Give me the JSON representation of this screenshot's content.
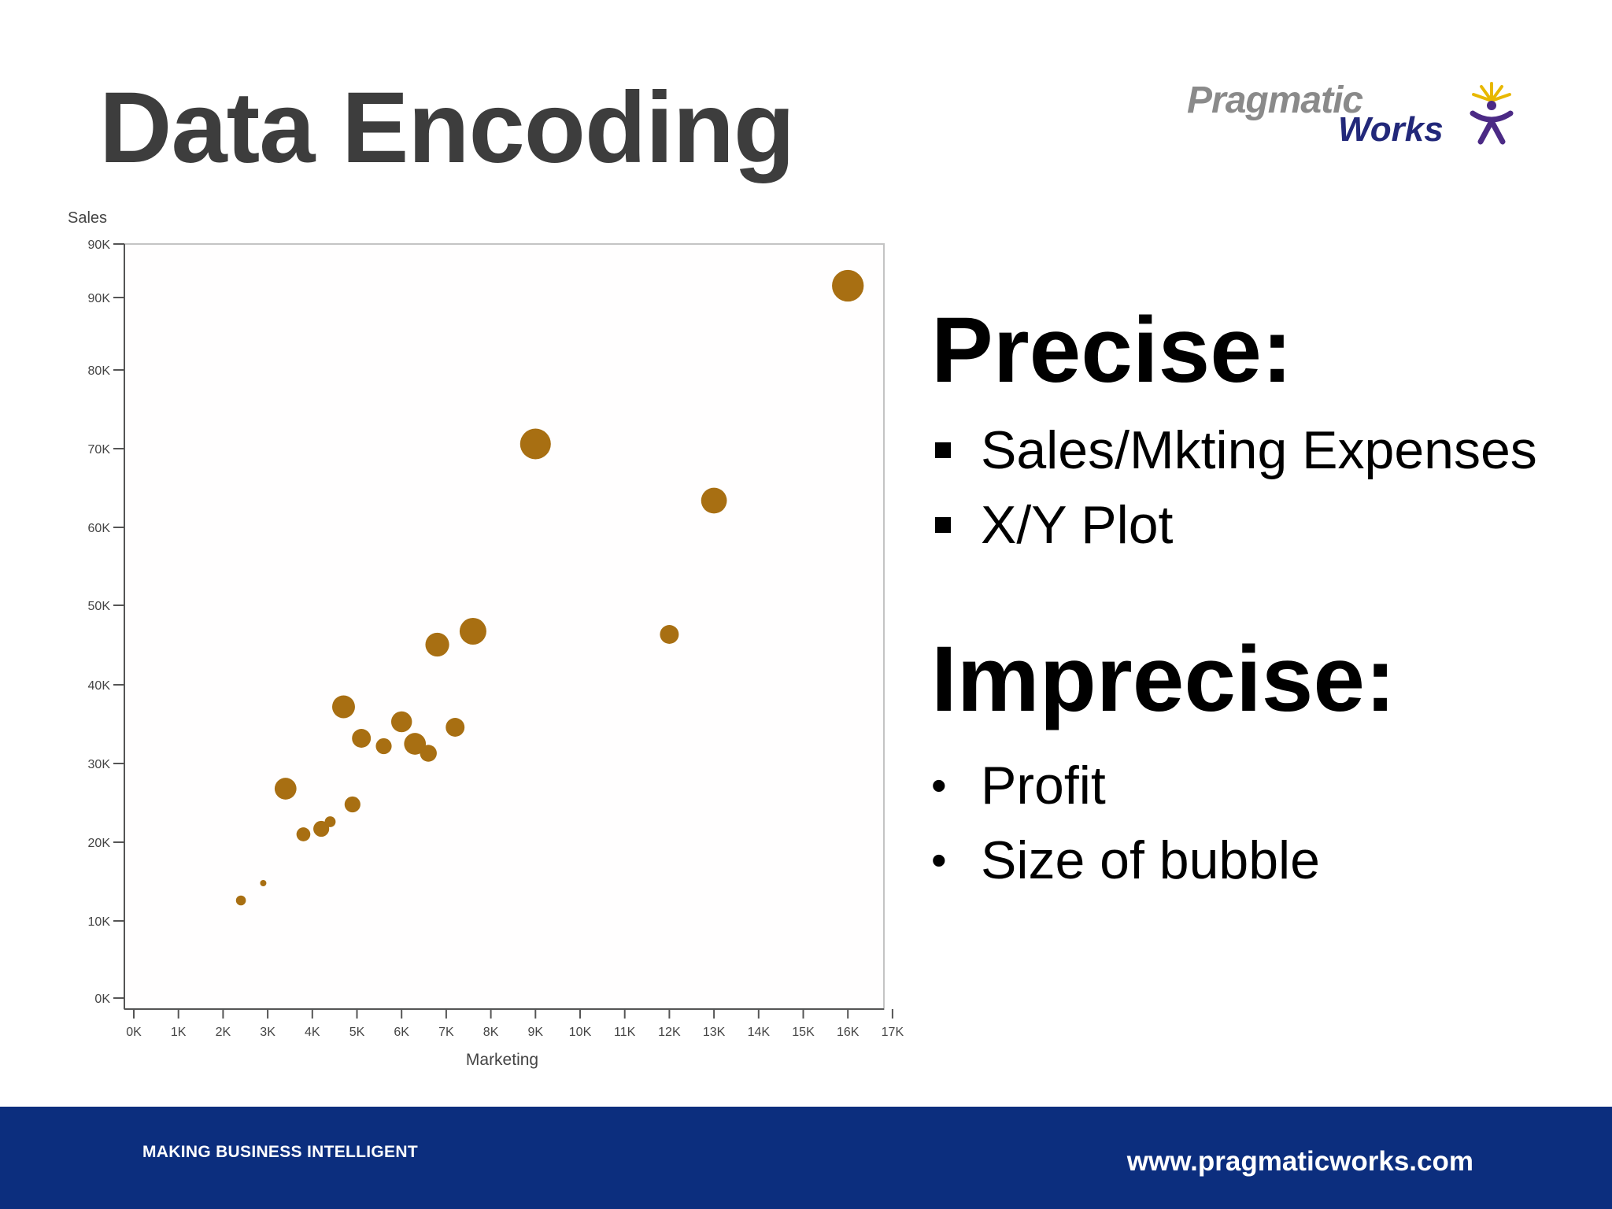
{
  "slide": {
    "title": "Data Encoding"
  },
  "logo": {
    "word1": "Pragmatic",
    "word2": "Works",
    "colors": {
      "gray": "#8a8a8a",
      "navy": "#22287a",
      "gold": "#e8b800",
      "purple": "#4b2a85"
    }
  },
  "chart_data": {
    "type": "scatter",
    "xlabel": "Marketing",
    "ylabel": "Sales",
    "xlim": [
      0,
      17000
    ],
    "ylim": [
      0,
      90000
    ],
    "xticks": [
      "0K",
      "1K",
      "2K",
      "3K",
      "4K",
      "5K",
      "6K",
      "7K",
      "8K",
      "9K",
      "10K",
      "11K",
      "12K",
      "13K",
      "14K",
      "15K",
      "16K",
      "17K"
    ],
    "yticks": [
      "0K",
      "10K",
      "20K",
      "30K",
      "40K",
      "50K",
      "60K",
      "70K",
      "80K",
      "90K"
    ],
    "yticks_shown": [
      "0K",
      "10K",
      "20K",
      "30K",
      "40K",
      "50K",
      "60K",
      "70K",
      "80K",
      "90K",
      "90K"
    ],
    "bubble_color": "#a86f12",
    "size_encoding": "Profit",
    "points": [
      {
        "x": 2400,
        "y": 12600,
        "size": 1.0
      },
      {
        "x": 2900,
        "y": 14800,
        "size": 0.5
      },
      {
        "x": 3400,
        "y": 26800,
        "size": 2.2
      },
      {
        "x": 3800,
        "y": 21000,
        "size": 1.4
      },
      {
        "x": 4200,
        "y": 21700,
        "size": 1.6
      },
      {
        "x": 4400,
        "y": 22600,
        "size": 1.1
      },
      {
        "x": 4700,
        "y": 37200,
        "size": 2.3
      },
      {
        "x": 4900,
        "y": 24800,
        "size": 1.6
      },
      {
        "x": 5100,
        "y": 33200,
        "size": 1.9
      },
      {
        "x": 5600,
        "y": 32200,
        "size": 1.6
      },
      {
        "x": 6000,
        "y": 35300,
        "size": 2.1
      },
      {
        "x": 6300,
        "y": 32500,
        "size": 2.2
      },
      {
        "x": 6600,
        "y": 31300,
        "size": 1.7
      },
      {
        "x": 6800,
        "y": 45100,
        "size": 2.4
      },
      {
        "x": 7200,
        "y": 34600,
        "size": 1.9
      },
      {
        "x": 7600,
        "y": 46800,
        "size": 2.7
      },
      {
        "x": 9000,
        "y": 70600,
        "size": 3.1
      },
      {
        "x": 12000,
        "y": 46400,
        "size": 1.9
      },
      {
        "x": 13000,
        "y": 63400,
        "size": 2.6
      },
      {
        "x": 16000,
        "y": 90700,
        "size": 3.2
      }
    ]
  },
  "panel": {
    "precise_heading": "Precise:",
    "precise_items": [
      "Sales/Mkting Expenses",
      "X/Y Plot"
    ],
    "imprecise_heading": "Imprecise:",
    "imprecise_items": [
      "Profit",
      "Size of bubble"
    ],
    "bullet_dot": "•"
  },
  "footer": {
    "tagline": "MAKING BUSINESS INTELLIGENT",
    "website": "www.pragmaticworks.com",
    "background": "#0c2e7e"
  }
}
